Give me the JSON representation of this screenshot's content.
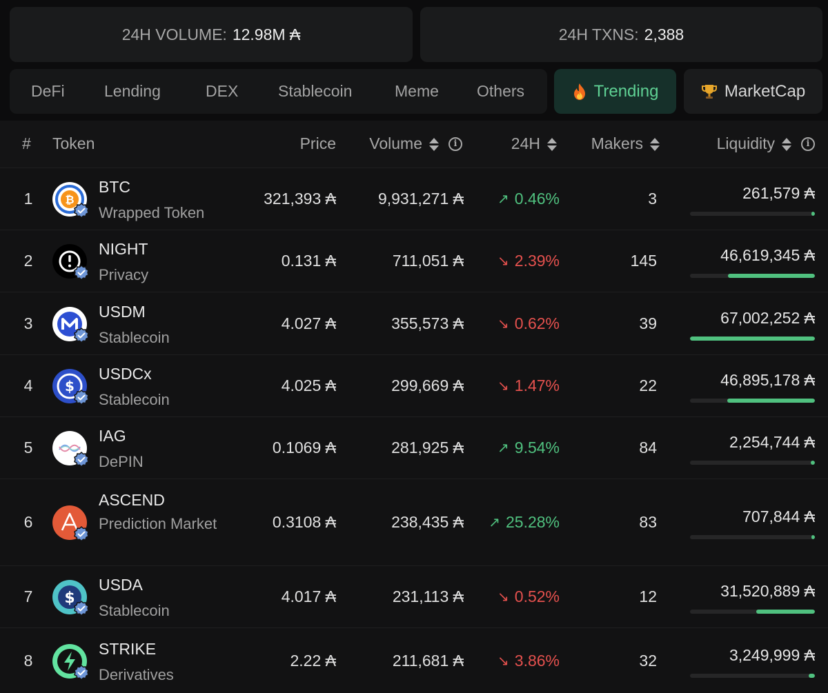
{
  "stats": {
    "volume_label": "24H VOLUME:",
    "volume_value": "12.98M ₳",
    "txns_label": "24H TXNS:",
    "txns_value": "2,388"
  },
  "tabs": [
    "DeFi",
    "Lending",
    "DEX",
    "Stablecoin",
    "Meme",
    "Others"
  ],
  "trending_label": "Trending",
  "marketcap_label": "MarketCap",
  "columns": {
    "rank": "#",
    "token": "Token",
    "price": "Price",
    "volume": "Volume",
    "change": "24H",
    "makers": "Makers",
    "liquidity": "Liquidity"
  },
  "colors": {
    "up": "#50c17f",
    "down": "#e5514e",
    "accent": "#5fd194"
  },
  "rows": [
    {
      "rank": "1",
      "name": "BTC",
      "category": "Wrapped Token",
      "price": "321,393 ₳",
      "volume": "9,931,271 ₳",
      "change": "0.46%",
      "direction": "up",
      "makers": "3",
      "liquidity": "261,579 ₳",
      "liquidity_share": 0.004,
      "icon": "btc-icon"
    },
    {
      "rank": "2",
      "name": "NIGHT",
      "category": "Privacy",
      "price": "0.131 ₳",
      "volume": "711,051 ₳",
      "change": "2.39%",
      "direction": "down",
      "makers": "145",
      "liquidity": "46,619,345 ₳",
      "liquidity_share": 0.696,
      "icon": "night-icon"
    },
    {
      "rank": "3",
      "name": "USDM",
      "category": "Stablecoin",
      "price": "4.027 ₳",
      "volume": "355,573 ₳",
      "change": "0.62%",
      "direction": "down",
      "makers": "39",
      "liquidity": "67,002,252 ₳",
      "liquidity_share": 1.0,
      "icon": "usdm-icon"
    },
    {
      "rank": "4",
      "name": "USDCx",
      "category": "Stablecoin",
      "price": "4.025 ₳",
      "volume": "299,669 ₳",
      "change": "1.47%",
      "direction": "down",
      "makers": "22",
      "liquidity": "46,895,178 ₳",
      "liquidity_share": 0.7,
      "icon": "usdcx-icon"
    },
    {
      "rank": "5",
      "name": "IAG",
      "category": "DePIN",
      "price": "0.1069 ₳",
      "volume": "281,925 ₳",
      "change": "9.54%",
      "direction": "up",
      "makers": "84",
      "liquidity": "2,254,744 ₳",
      "liquidity_share": 0.034,
      "icon": "iag-icon"
    },
    {
      "rank": "6",
      "name": "ASCEND",
      "category": "Prediction Market",
      "price": "0.3108 ₳",
      "volume": "238,435 ₳",
      "change": "25.28%",
      "direction": "up",
      "makers": "83",
      "liquidity": "707,844 ₳",
      "liquidity_share": 0.011,
      "icon": "ascend-icon"
    },
    {
      "rank": "7",
      "name": "USDA",
      "category": "Stablecoin",
      "price": "4.017 ₳",
      "volume": "231,113 ₳",
      "change": "0.52%",
      "direction": "down",
      "makers": "12",
      "liquidity": "31,520,889 ₳",
      "liquidity_share": 0.47,
      "icon": "usda-icon"
    },
    {
      "rank": "8",
      "name": "STRIKE",
      "category": "Derivatives",
      "price": "2.22 ₳",
      "volume": "211,681 ₳",
      "change": "3.86%",
      "direction": "down",
      "makers": "32",
      "liquidity": "3,249,999 ₳",
      "liquidity_share": 0.048,
      "icon": "strike-icon"
    }
  ]
}
